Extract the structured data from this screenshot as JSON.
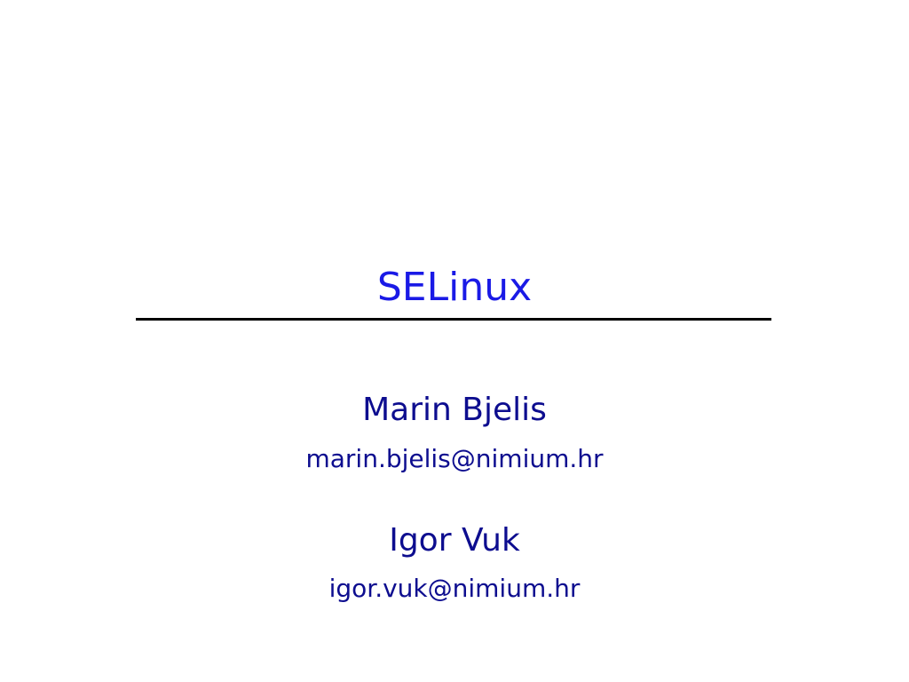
{
  "slide": {
    "title": "SELinux",
    "authors": [
      {
        "name": "Marin Bjelis",
        "email": "marin.bjelis@nimium.hr"
      },
      {
        "name": "Igor Vuk",
        "email": "igor.vuk@nimium.hr"
      }
    ]
  },
  "colors": {
    "title": "#1a1ae6",
    "author_text": "#0d0d8f",
    "rule": "#000000",
    "background": "#ffffff"
  }
}
